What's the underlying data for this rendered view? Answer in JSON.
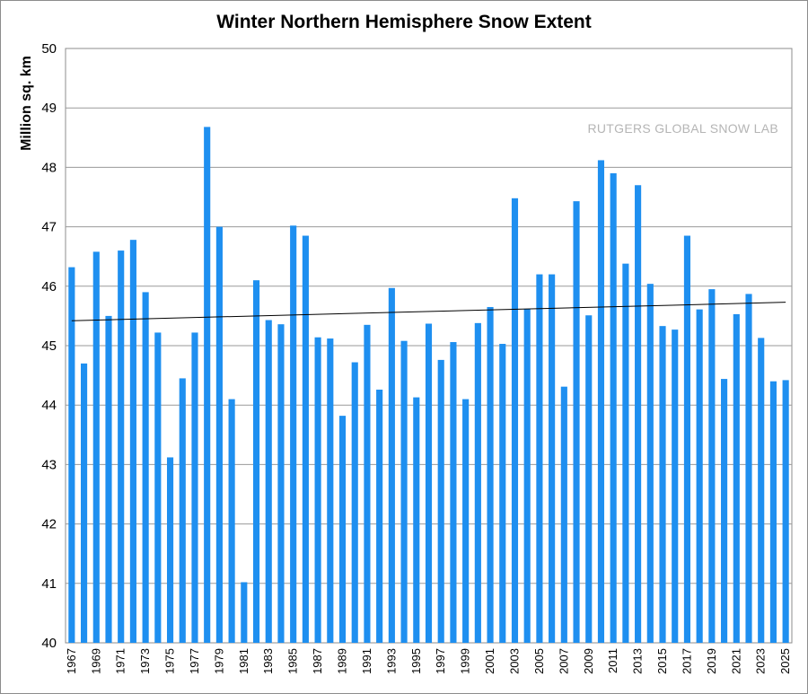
{
  "chart_data": {
    "type": "bar",
    "title": "Winter Northern Hemisphere Snow Extent",
    "ylabel": "Million sq. km",
    "xlabel": "",
    "ylim": [
      40,
      50
    ],
    "yticks": [
      40,
      41,
      42,
      43,
      44,
      45,
      46,
      47,
      48,
      49,
      50
    ],
    "grid": true,
    "legend": "none",
    "annotation": "RUTGERS GLOBAL SNOW LAB",
    "bar_color": "#1e8ff0",
    "trendline": {
      "color": "#000000",
      "start": 45.42,
      "end": 45.73
    },
    "categories": [
      "1967",
      "1968",
      "1969",
      "1970",
      "1971",
      "1972",
      "1973",
      "1974",
      "1975",
      "1976",
      "1977",
      "1978",
      "1979",
      "1980",
      "1981",
      "1982",
      "1983",
      "1984",
      "1985",
      "1986",
      "1987",
      "1988",
      "1989",
      "1990",
      "1991",
      "1992",
      "1993",
      "1994",
      "1995",
      "1996",
      "1997",
      "1998",
      "1999",
      "2000",
      "2001",
      "2002",
      "2003",
      "2004",
      "2005",
      "2006",
      "2007",
      "2008",
      "2009",
      "2010",
      "2011",
      "2012",
      "2013",
      "2014",
      "2015",
      "2016",
      "2017",
      "2018",
      "2019",
      "2020",
      "2021",
      "2022",
      "2023",
      "2024",
      "2025"
    ],
    "values": [
      46.32,
      44.7,
      46.58,
      45.5,
      46.6,
      46.78,
      45.9,
      45.22,
      43.12,
      44.45,
      45.22,
      48.68,
      47.0,
      44.1,
      41.02,
      46.1,
      45.43,
      45.36,
      47.02,
      46.85,
      45.14,
      45.12,
      43.82,
      44.72,
      45.35,
      44.26,
      45.97,
      45.08,
      44.13,
      45.37,
      44.76,
      45.06,
      44.1,
      45.38,
      45.65,
      45.03,
      47.48,
      45.62,
      46.2,
      46.2,
      44.31,
      47.43,
      45.51,
      48.12,
      47.9,
      46.38,
      47.7,
      46.04,
      45.33,
      45.27,
      46.85,
      45.61,
      45.95,
      44.44,
      45.53,
      45.87,
      45.13,
      44.4,
      44.42
    ]
  }
}
